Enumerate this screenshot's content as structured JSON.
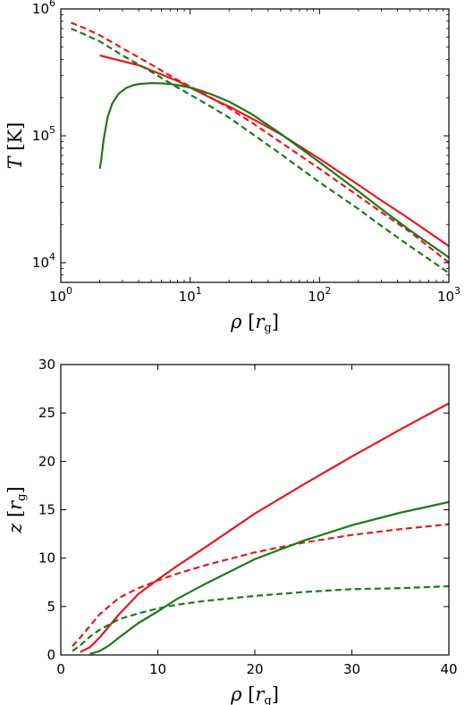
{
  "chart_data": [
    {
      "type": "line",
      "xscale": "log",
      "yscale": "log",
      "xlim": [
        1,
        1000
      ],
      "ylim": [
        7000,
        1000000
      ],
      "xticks": [
        1,
        10,
        100,
        1000
      ],
      "yticks": [
        10000,
        100000,
        1000000
      ],
      "xtick_labels": [
        {
          "base": "10",
          "exp": "0"
        },
        {
          "base": "10",
          "exp": "1"
        },
        {
          "base": "10",
          "exp": "2"
        },
        {
          "base": "10",
          "exp": "3"
        }
      ],
      "ytick_labels": [
        {
          "base": "10",
          "exp": "4"
        },
        {
          "base": "10",
          "exp": "5"
        },
        {
          "base": "10",
          "exp": "6"
        }
      ],
      "xlabel": {
        "sym": "ρ",
        "unit": "r",
        "sub": "g"
      },
      "ylabel": {
        "sym": "T",
        "unit": "K"
      },
      "grid": false,
      "series": [
        {
          "color": "#e41a1c",
          "dash": "solid",
          "x": [
            2,
            4,
            8,
            10,
            15,
            20,
            30,
            50,
            100,
            200,
            300,
            500,
            1000
          ],
          "y": [
            430000,
            360000,
            270000,
            240000,
            195000,
            170000,
            137000,
            103000,
            66000,
            41000,
            31000,
            22000,
            13500
          ]
        },
        {
          "color": "#e41a1c",
          "dash": "dashed",
          "x": [
            1.2,
            1.5,
            2,
            3,
            5,
            8,
            10,
            15,
            20,
            30,
            50,
            100,
            200,
            300,
            500,
            1000
          ],
          "y": [
            780000,
            710000,
            620000,
            490000,
            365000,
            275000,
            245000,
            196000,
            165000,
            127000,
            89000,
            55000,
            33500,
            25000,
            17500,
            10000
          ]
        },
        {
          "color": "#1a7a1a",
          "dash": "solid",
          "x": [
            2,
            2.05,
            2.15,
            2.3,
            2.5,
            2.8,
            3.2,
            3.6,
            4,
            5,
            6,
            7,
            8,
            10,
            12,
            15,
            20,
            30,
            50,
            100,
            200,
            300,
            500,
            1000
          ],
          "y": [
            55000,
            64000,
            95000,
            140000,
            180000,
            215000,
            238000,
            250000,
            256000,
            260000,
            259000,
            256000,
            251000,
            240000,
            228000,
            210000,
            186000,
            148000,
            104000,
            62000,
            36500,
            26500,
            18000,
            11000
          ]
        },
        {
          "color": "#1a7a1a",
          "dash": "dashed",
          "x": [
            1.2,
            1.5,
            2,
            3,
            5,
            8,
            10,
            15,
            20,
            30,
            50,
            100,
            200,
            300,
            500,
            1000
          ],
          "y": [
            700000,
            635000,
            555000,
            430000,
            320000,
            240000,
            211000,
            166000,
            139000,
            104000,
            72000,
            43000,
            26500,
            19500,
            13500,
            8300
          ]
        }
      ]
    },
    {
      "type": "line",
      "xlim": [
        0,
        40
      ],
      "ylim": [
        0,
        30
      ],
      "xticks": [
        0,
        10,
        20,
        30,
        40
      ],
      "yticks": [
        0,
        5,
        10,
        15,
        20,
        25,
        30
      ],
      "xlabel": {
        "sym": "ρ",
        "unit": "r",
        "sub": "g"
      },
      "ylabel": {
        "sym": "z",
        "unit": "r",
        "sub": "g"
      },
      "grid": false,
      "series": [
        {
          "color": "#e41a1c",
          "dash": "solid",
          "x": [
            2,
            3,
            4,
            5,
            6,
            8,
            10,
            12,
            15,
            20,
            25,
            30,
            35,
            40
          ],
          "y": [
            0.3,
            0.8,
            1.8,
            3.0,
            4.2,
            6.3,
            7.8,
            9.2,
            11.2,
            14.6,
            17.6,
            20.5,
            23.3,
            26.0
          ]
        },
        {
          "color": "#e41a1c",
          "dash": "dashed",
          "x": [
            1.2,
            2,
            3,
            4,
            6,
            8,
            10,
            12,
            15,
            20,
            25,
            30,
            35,
            40
          ],
          "y": [
            0.9,
            1.8,
            3.0,
            4.2,
            5.9,
            6.9,
            7.7,
            8.4,
            9.3,
            10.6,
            11.6,
            12.4,
            13.0,
            13.5
          ]
        },
        {
          "color": "#1a7a1a",
          "dash": "solid",
          "x": [
            3,
            4,
            5,
            6,
            8,
            10,
            12,
            15,
            20,
            25,
            30,
            35,
            40
          ],
          "y": [
            0.1,
            0.4,
            1.0,
            1.8,
            3.3,
            4.5,
            5.8,
            7.4,
            9.9,
            11.8,
            13.4,
            14.7,
            15.8
          ]
        },
        {
          "color": "#1a7a1a",
          "dash": "dashed",
          "x": [
            1.2,
            2,
            3,
            4,
            6,
            8,
            10,
            12,
            15,
            20,
            25,
            30,
            35,
            40
          ],
          "y": [
            0.4,
            1.0,
            1.9,
            2.6,
            3.7,
            4.3,
            4.8,
            5.2,
            5.6,
            6.1,
            6.5,
            6.8,
            6.9,
            7.1
          ]
        }
      ]
    }
  ]
}
